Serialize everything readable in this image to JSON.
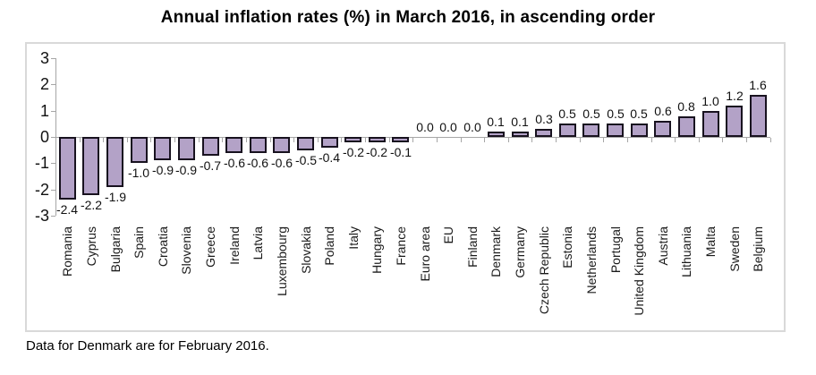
{
  "chart_data": {
    "type": "bar",
    "title": "Annual inflation rates (%) in March 2016, in ascending order",
    "footnote": "Data for Denmark are for February 2016.",
    "categories": [
      "Romania",
      "Cyprus",
      "Bulgaria",
      "Spain",
      "Croatia",
      "Slovenia",
      "Greece",
      "Ireland",
      "Latvia",
      "Luxembourg",
      "Slovakia",
      "Poland",
      "Italy",
      "Hungary",
      "France",
      "Euro area",
      "EU",
      "Finland",
      "Denmark",
      "Germany",
      "Czech Republic",
      "Estonia",
      "Netherlands",
      "Portugal",
      "United Kingdom",
      "Austria",
      "Lithuania",
      "Malta",
      "Sweden",
      "Belgium"
    ],
    "values": [
      -2.4,
      -2.2,
      -1.9,
      -1.0,
      -0.9,
      -0.9,
      -0.7,
      -0.6,
      -0.6,
      -0.6,
      -0.5,
      -0.4,
      -0.2,
      -0.2,
      -0.1,
      0.0,
      0.0,
      0.0,
      0.1,
      0.1,
      0.3,
      0.5,
      0.5,
      0.5,
      0.5,
      0.6,
      0.8,
      1.0,
      1.2,
      1.6
    ],
    "data_labels": [
      "-2.4",
      "-2.2",
      "-1.9",
      "-1.0",
      "-0.9",
      "-0.9",
      "-0.7",
      "-0.6",
      "-0.6",
      "-0.6",
      "-0.5",
      "-0.4",
      "-0.2",
      "-0.2",
      "-0.1",
      "0.0",
      "0.0",
      "0.0",
      "0.1",
      "0.1",
      "0.3",
      "0.5",
      "0.5",
      "0.5",
      "0.5",
      "0.6",
      "0.8",
      "1.0",
      "1.2",
      "1.6"
    ],
    "y_ticks": [
      3,
      2,
      1,
      0,
      -1,
      -2,
      -3
    ],
    "ylim": [
      -3,
      3
    ],
    "xlabel": "",
    "ylabel": "",
    "grid": false,
    "legend": null,
    "bar_color": "#b3a2c7",
    "bar_border_color": "#18121f",
    "axis_color": "#a6a6a6"
  }
}
